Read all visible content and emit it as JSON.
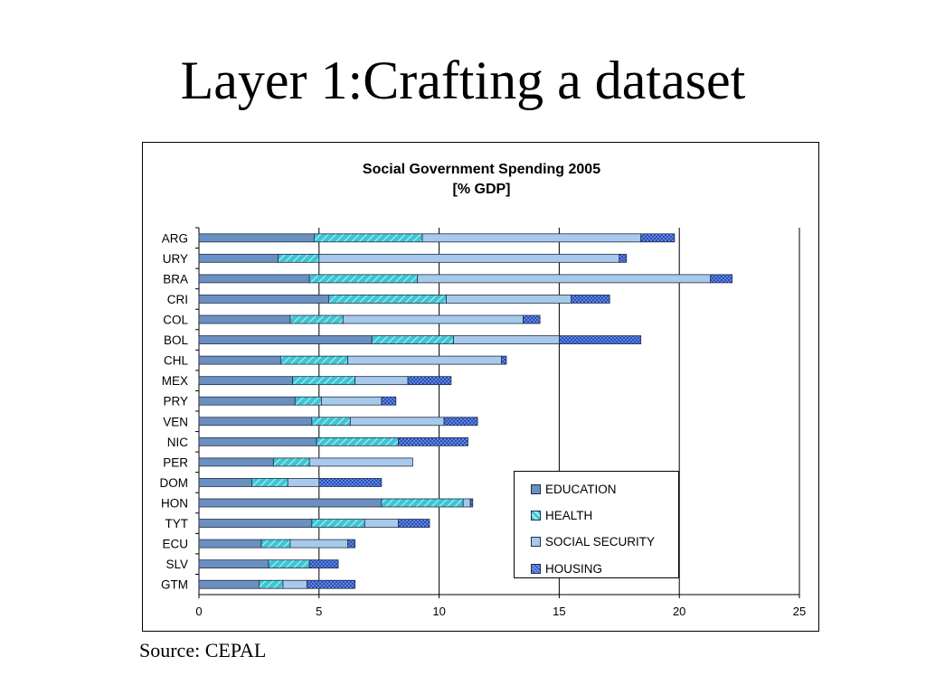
{
  "slide": {
    "title": "Layer 1:Crafting a dataset",
    "source": "Source: CEPAL"
  },
  "chart_data": {
    "type": "bar",
    "orientation": "horizontal",
    "stacked": true,
    "title": "Social Government Spending 2005",
    "subtitle": "[% GDP]",
    "xlabel": "",
    "ylabel": "",
    "xlim": [
      0,
      25
    ],
    "xticks": [
      0,
      5,
      10,
      15,
      20,
      25
    ],
    "grid": "vertical",
    "legend_position": "lower-right",
    "categories": [
      "ARG",
      "URY",
      "BRA",
      "CRI",
      "COL",
      "BOL",
      "CHL",
      "MEX",
      "PRY",
      "VEN",
      "NIC",
      "PER",
      "DOM",
      "HON",
      "TYT",
      "ECU",
      "SLV",
      "GTM"
    ],
    "series": [
      {
        "name": "EDUCATION",
        "color": "#5b7fae",
        "values": [
          4.8,
          3.3,
          4.6,
          5.4,
          3.8,
          7.2,
          3.4,
          3.9,
          4.0,
          4.7,
          4.9,
          3.1,
          2.2,
          7.6,
          4.7,
          2.6,
          2.9,
          2.5
        ]
      },
      {
        "name": "HEALTH",
        "color": "#3ec4d2",
        "values": [
          4.5,
          1.7,
          4.5,
          4.9,
          2.2,
          3.4,
          2.8,
          2.6,
          1.1,
          1.6,
          3.4,
          1.5,
          1.5,
          3.4,
          2.2,
          1.2,
          1.7,
          1.0
        ]
      },
      {
        "name": "SOCIAL SECURITY",
        "color": "#9cc3e6",
        "values": [
          9.1,
          12.5,
          12.2,
          5.2,
          7.5,
          4.4,
          6.4,
          2.2,
          2.5,
          3.9,
          0.0,
          4.3,
          1.3,
          0.3,
          1.4,
          2.4,
          0.0,
          1.0
        ]
      },
      {
        "name": "HOUSING",
        "color": "#4f7fe6",
        "values": [
          1.4,
          0.3,
          0.9,
          1.6,
          0.7,
          3.4,
          0.2,
          1.8,
          0.6,
          1.4,
          2.9,
          0.0,
          2.6,
          0.1,
          1.3,
          0.3,
          1.2,
          2.0
        ]
      }
    ]
  }
}
